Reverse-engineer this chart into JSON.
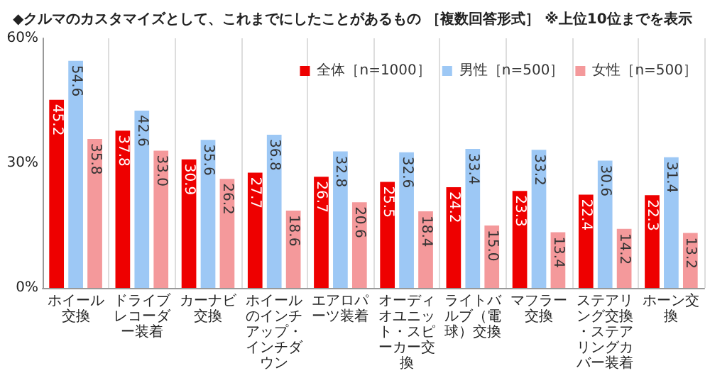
{
  "chart_data": {
    "type": "bar",
    "title": "◆クルマのカスタマイズとして、これまでにしたことがあるもの ［複数回答形式］ ※上位10位までを表示",
    "categories": [
      "ホイール交換",
      "ドライブレコーダー装着",
      "カーナビ交換",
      "ホイールのインチアップ・インチダウン",
      "エアロパーツ装着",
      "オーディオユニット・スピーカー交換",
      "ライトバルブ（電球）交換",
      "マフラー交換",
      "ステアリング交換・ステアリングカバー装着",
      "ホーン交換"
    ],
    "series": [
      {
        "name": "全体［n=1000］",
        "color": "#ee0000",
        "values": [
          45.2,
          37.8,
          30.9,
          27.7,
          26.7,
          25.5,
          24.2,
          23.3,
          22.4,
          22.3
        ],
        "value_labels": [
          "45.2",
          "37.8",
          "30.9",
          "27.7",
          "26.7",
          "25.5",
          "24.2",
          "23.3",
          "22.4",
          "22.3"
        ]
      },
      {
        "name": "男性［n=500］",
        "color": "#9dc8f5",
        "values": [
          54.6,
          42.6,
          35.6,
          36.8,
          32.8,
          32.6,
          33.4,
          33.2,
          30.6,
          31.4
        ],
        "value_labels": [
          "54.6",
          "42.6",
          "35.6",
          "36.8",
          "32.8",
          "32.6",
          "33.4",
          "33.2",
          "30.6",
          "31.4"
        ]
      },
      {
        "name": "女性［n=500］",
        "color": "#f4999b",
        "values": [
          35.8,
          33.0,
          26.2,
          18.6,
          20.6,
          18.4,
          15.0,
          13.4,
          14.2,
          13.2
        ],
        "value_labels": [
          "35.8",
          "33.0",
          "26.2",
          "18.6",
          "20.6",
          "18.4",
          "15.0",
          "13.4",
          "14.2",
          "13.2"
        ]
      }
    ],
    "ylim": [
      0,
      60
    ],
    "yticks": [
      {
        "value": 0,
        "label": "0%"
      },
      {
        "value": 30,
        "label": "30%"
      },
      {
        "value": 60,
        "label": "60%"
      }
    ],
    "grid": "x",
    "legend": "top right"
  }
}
